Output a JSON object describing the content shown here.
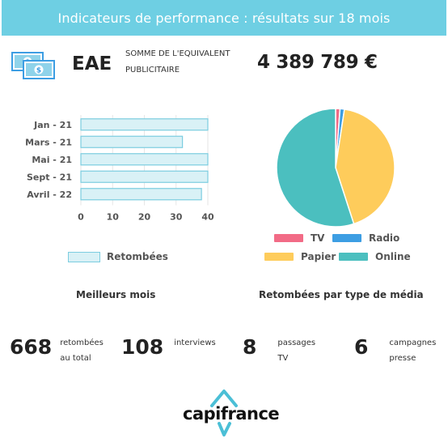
{
  "header": {
    "title": "Indicateurs de performance : résultats sur 18 mois"
  },
  "eae": {
    "icon": "money-bills-icon",
    "label": "EAE",
    "description_line1": "SOMME DE L'EQUIVALENT",
    "description_line2": "PUBLICITAIRE",
    "value": "4 389 789 €"
  },
  "chart_data": [
    {
      "type": "bar",
      "orientation": "horizontal",
      "title": "Meilleurs mois",
      "categories": [
        "Jan - 21",
        "Mars - 21",
        "Mai - 21",
        "Sept - 21",
        "Avril - 22"
      ],
      "series": [
        {
          "name": "Retombées",
          "values": [
            40,
            32,
            40,
            40,
            38
          ],
          "color": "#d9f1f6",
          "border": "#7ccde0"
        }
      ],
      "xlim": [
        0,
        40
      ],
      "xticks": [
        "0",
        "10",
        "20",
        "30",
        "40"
      ],
      "grid": true,
      "legend": "bottom"
    },
    {
      "type": "pie",
      "title": "Retombées par type de média",
      "slices": [
        {
          "name": "TV",
          "value": 1.2,
          "color": "#f26b86"
        },
        {
          "name": "Radio",
          "value": 1.2,
          "color": "#3d9ee3"
        },
        {
          "name": "Papier",
          "value": 42.6,
          "color": "#fecc5b"
        },
        {
          "name": "Online",
          "value": 55.0,
          "color": "#4bbfbf"
        }
      ],
      "legend": "bottom"
    }
  ],
  "sections": {
    "best_months": "Meilleurs mois",
    "by_media": "Retombées par type de média"
  },
  "stats": [
    {
      "value": "668",
      "line1": "retombées",
      "line2": "au total"
    },
    {
      "value": "108",
      "line1": "interviews",
      "line2": ""
    },
    {
      "value": "8",
      "line1": "passages",
      "line2": "TV"
    },
    {
      "value": "6",
      "line1": "campagnes",
      "line2": "presse"
    }
  ],
  "logo": {
    "text": "capifrance",
    "color": "#4bbfd6"
  }
}
